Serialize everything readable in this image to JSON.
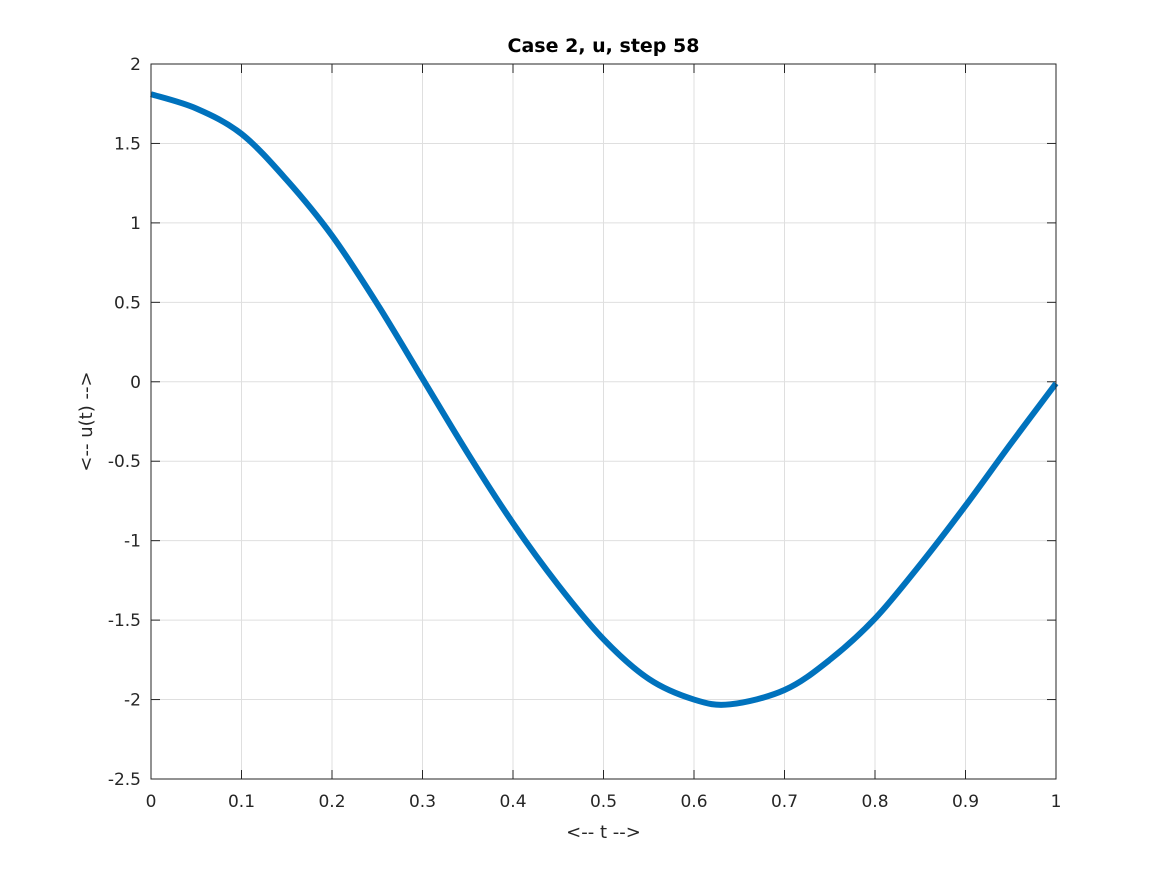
{
  "chart_data": {
    "type": "line",
    "title": "Case 2, u, step 58",
    "xlabel": "<-- t -->",
    "ylabel": "<-- u(t) -->",
    "xlim": [
      0,
      1
    ],
    "ylim": [
      -2.5,
      2
    ],
    "xticks": [
      0,
      0.1,
      0.2,
      0.3,
      0.4,
      0.5,
      0.6,
      0.7,
      0.8,
      0.9,
      1
    ],
    "xtick_labels": [
      "0",
      "0.1",
      "0.2",
      "0.3",
      "0.4",
      "0.5",
      "0.6",
      "0.7",
      "0.8",
      "0.9",
      "1"
    ],
    "yticks": [
      -2.5,
      -2,
      -1.5,
      -1,
      -0.5,
      0,
      0.5,
      1,
      1.5,
      2
    ],
    "ytick_labels": [
      "-2.5",
      "-2",
      "-1.5",
      "-1",
      "-0.5",
      "0",
      "0.5",
      "1",
      "1.5",
      "2"
    ],
    "grid": true,
    "legend": "none",
    "series": [
      {
        "color": "#0072BD",
        "x": [
          0,
          0.05,
          0.1,
          0.15,
          0.2,
          0.25,
          0.3,
          0.35,
          0.4,
          0.45,
          0.5,
          0.55,
          0.6,
          0.64,
          0.7,
          0.75,
          0.8,
          0.85,
          0.9,
          0.95,
          1
        ],
        "y": [
          1.81,
          1.72,
          1.56,
          1.27,
          0.92,
          0.49,
          0.02,
          -0.45,
          -0.89,
          -1.28,
          -1.62,
          -1.87,
          -2.0,
          -2.03,
          -1.94,
          -1.75,
          -1.49,
          -1.15,
          -0.78,
          -0.39,
          -0.01
        ]
      }
    ]
  }
}
